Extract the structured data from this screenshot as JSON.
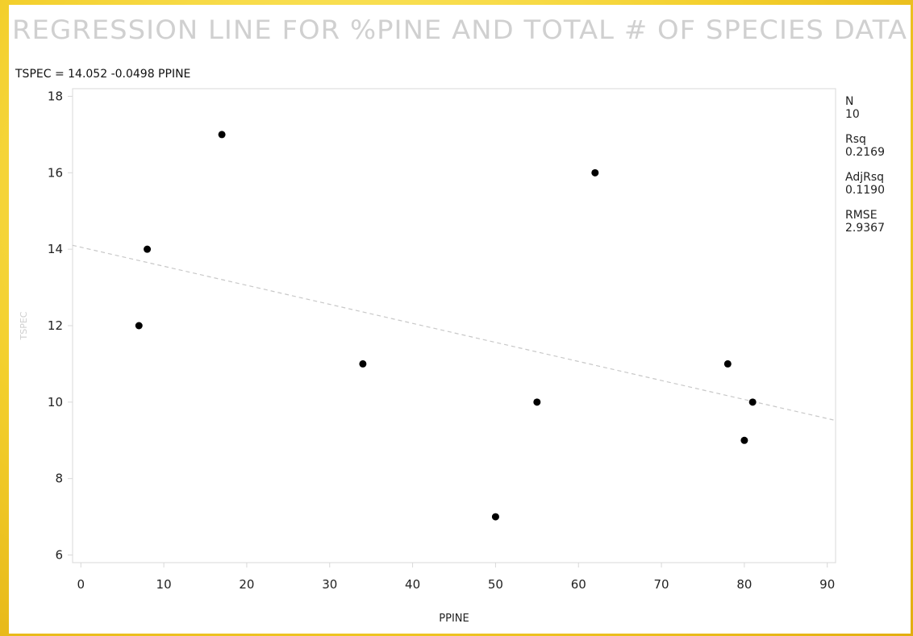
{
  "chart_data": {
    "type": "scatter",
    "title": "REGRESSION LINE FOR %PINE AND TOTAL # OF SPECIES DATA",
    "equation": "TSPEC = 14.052 -0.0498    PPINE",
    "xlabel": "PPINE",
    "ylabel": "TSPEC",
    "xlim": [
      -1,
      91
    ],
    "ylim": [
      5.8,
      18.2
    ],
    "xticks": [
      0,
      10,
      20,
      30,
      40,
      50,
      60,
      70,
      80,
      90
    ],
    "yticks": [
      6,
      8,
      10,
      12,
      14,
      16,
      18
    ],
    "points": [
      {
        "x": 7,
        "y": 12
      },
      {
        "x": 8,
        "y": 14
      },
      {
        "x": 17,
        "y": 17
      },
      {
        "x": 34,
        "y": 11
      },
      {
        "x": 50,
        "y": 7
      },
      {
        "x": 55,
        "y": 10
      },
      {
        "x": 62,
        "y": 16
      },
      {
        "x": 78,
        "y": 11
      },
      {
        "x": 80,
        "y": 9
      },
      {
        "x": 81,
        "y": 10
      }
    ],
    "regression": {
      "intercept": 14.052,
      "slope": -0.0498,
      "x_range": [
        -1,
        91
      ],
      "style": "dashed"
    },
    "grid": false,
    "stats": [
      {
        "label": "N",
        "value": "10"
      },
      {
        "label": "Rsq",
        "value": "0.2169"
      },
      {
        "label": "AdjRsq",
        "value": "0.1190"
      },
      {
        "label": "RMSE",
        "value": "2.9367"
      }
    ]
  },
  "colors": {
    "point": "#000000",
    "regression_line": "#c8c8c8",
    "axis": "#d8d8d8",
    "background_gold": "#f3cf2c"
  }
}
